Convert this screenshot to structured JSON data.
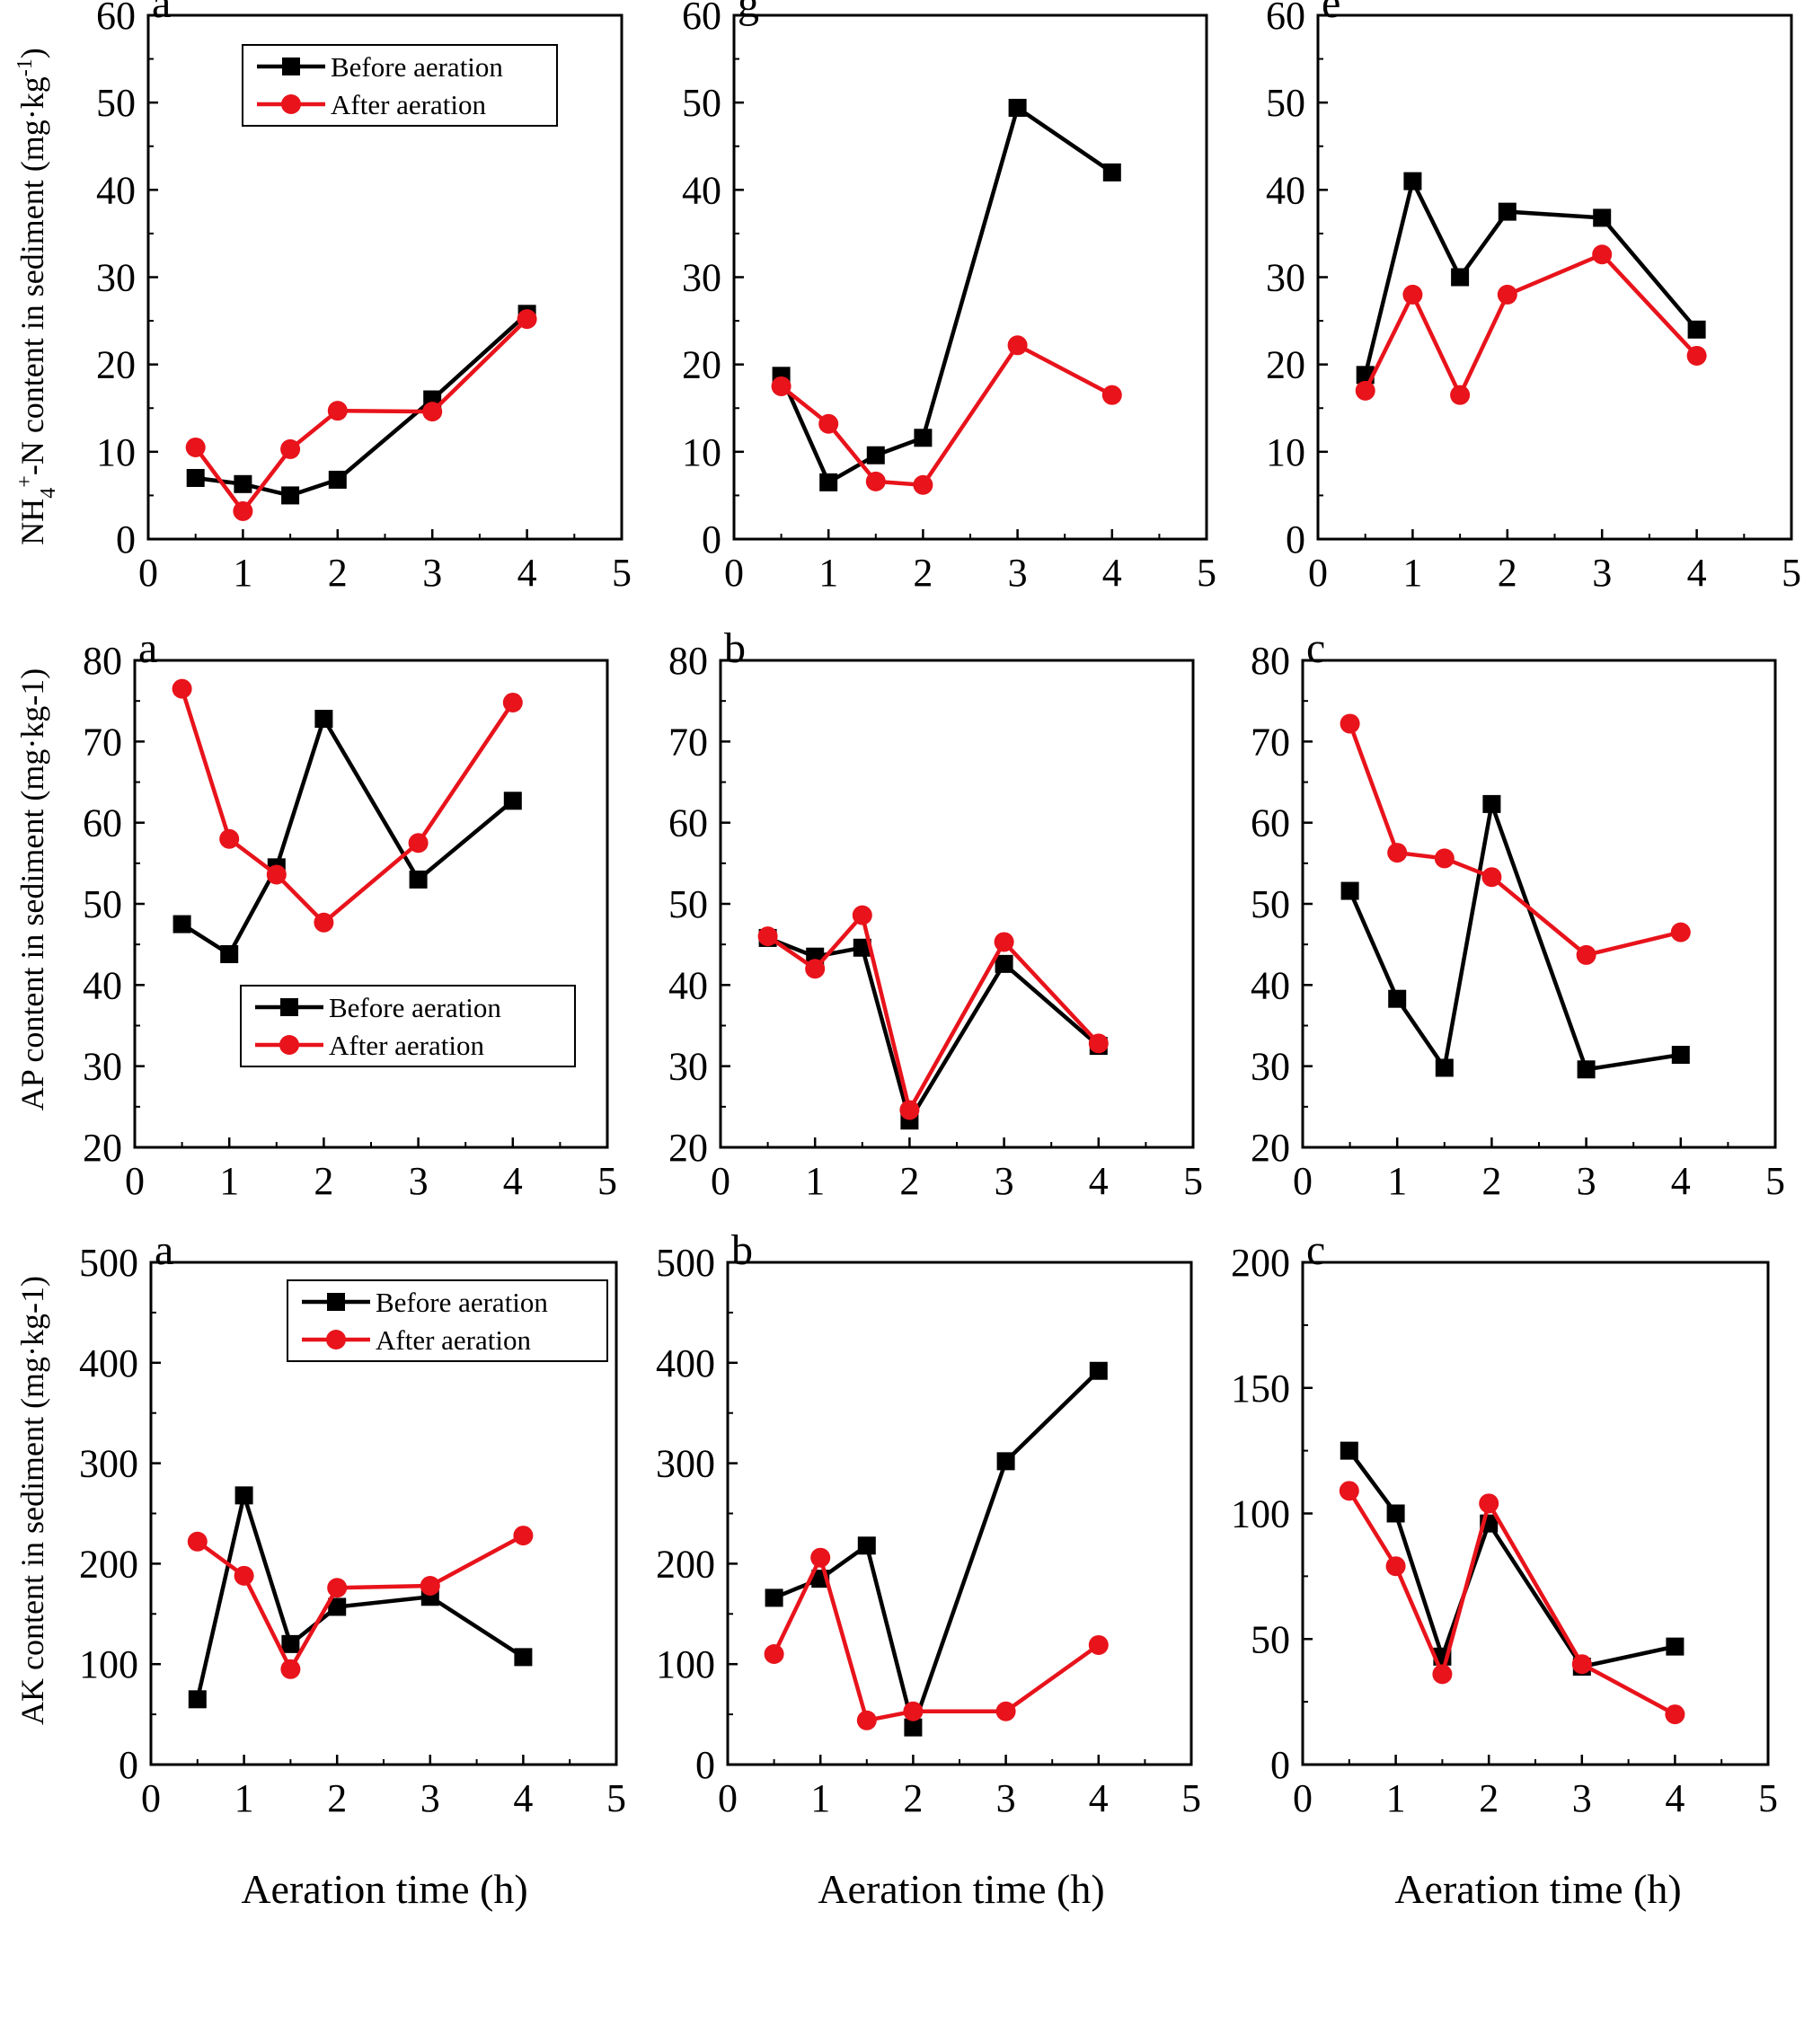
{
  "colors": {
    "before": "#000000",
    "after": "#e8131b",
    "axis": "#000000"
  },
  "rows": [
    {
      "ylabel": "NH4+-N content in sediment (mg·kg-1)",
      "ylabel_parts": {
        "base": "NH",
        "sub": "4",
        "sup": "+",
        "rest": "-N content in sediment (mg·kg",
        "unit_sup": "-1",
        "close": ")"
      }
    },
    {
      "ylabel": "AP content in sediment (mg·kg-1)"
    },
    {
      "ylabel": "AK content in sediment (mg·kg-1)"
    }
  ],
  "xlabel": "Aeration time (h)",
  "legend": {
    "before": "Before aeration",
    "after": "After aeration"
  },
  "chart_data": [
    {
      "type": "line",
      "panel": "a",
      "row": 0,
      "col": 0,
      "xlim": [
        0,
        5
      ],
      "ylim": [
        0,
        60
      ],
      "xticks": [
        0,
        1,
        2,
        3,
        4,
        5
      ],
      "yticks": [
        0,
        10,
        20,
        30,
        40,
        50,
        60
      ],
      "legend": "top-left",
      "title": "",
      "series": [
        {
          "name": "Before aeration",
          "x": [
            0.5,
            1,
            1.5,
            2,
            3,
            4
          ],
          "y": [
            7,
            6.3,
            5,
            6.8,
            16,
            25.8
          ]
        },
        {
          "name": "After aeration",
          "x": [
            0.5,
            1,
            1.5,
            2,
            3,
            4
          ],
          "y": [
            10.5,
            3.2,
            10.3,
            14.7,
            14.6,
            25.2
          ]
        }
      ]
    },
    {
      "type": "line",
      "panel": "g",
      "row": 0,
      "col": 1,
      "xlim": [
        0,
        5
      ],
      "ylim": [
        0,
        60
      ],
      "xticks": [
        0,
        1,
        2,
        3,
        4,
        5
      ],
      "yticks": [
        0,
        10,
        20,
        30,
        40,
        50,
        60
      ],
      "title": "",
      "series": [
        {
          "name": "Before aeration",
          "x": [
            0.5,
            1,
            1.5,
            2,
            3,
            4
          ],
          "y": [
            18.7,
            6.5,
            9.6,
            11.6,
            49.4,
            42
          ]
        },
        {
          "name": "After aeration",
          "x": [
            0.5,
            1,
            1.5,
            2,
            3,
            4
          ],
          "y": [
            17.5,
            13.2,
            6.6,
            6.2,
            22.2,
            16.5
          ]
        }
      ]
    },
    {
      "type": "line",
      "panel": "e",
      "row": 0,
      "col": 2,
      "xlim": [
        0,
        5
      ],
      "ylim": [
        0,
        60
      ],
      "xticks": [
        0,
        1,
        2,
        3,
        4,
        5
      ],
      "yticks": [
        0,
        10,
        20,
        30,
        40,
        50,
        60
      ],
      "title": "",
      "series": [
        {
          "name": "Before aeration",
          "x": [
            0.5,
            1,
            1.5,
            2,
            3,
            4
          ],
          "y": [
            18.8,
            41,
            30,
            37.5,
            36.8,
            24
          ]
        },
        {
          "name": "After aeration",
          "x": [
            0.5,
            1,
            1.5,
            2,
            3,
            4
          ],
          "y": [
            17,
            28,
            16.5,
            28,
            32.6,
            21
          ]
        }
      ]
    },
    {
      "type": "line",
      "panel": "a",
      "row": 1,
      "col": 0,
      "xlim": [
        0,
        5
      ],
      "ylim": [
        20,
        80
      ],
      "xticks": [
        0,
        1,
        2,
        3,
        4,
        5
      ],
      "yticks": [
        20,
        30,
        40,
        50,
        60,
        70,
        80
      ],
      "legend": "lower-middle",
      "title": "",
      "series": [
        {
          "name": "Before aeration",
          "x": [
            0.5,
            1,
            1.5,
            2,
            3,
            4
          ],
          "y": [
            47.5,
            43.8,
            54.5,
            72.8,
            53,
            62.7
          ]
        },
        {
          "name": "After aeration",
          "x": [
            0.5,
            1,
            1.5,
            2,
            3,
            4
          ],
          "y": [
            76.5,
            58,
            53.6,
            47.7,
            57.5,
            74.8
          ]
        }
      ]
    },
    {
      "type": "line",
      "panel": "b",
      "row": 1,
      "col": 1,
      "xlim": [
        0,
        5
      ],
      "ylim": [
        20,
        80
      ],
      "xticks": [
        0,
        1,
        2,
        3,
        4,
        5
      ],
      "yticks": [
        20,
        30,
        40,
        50,
        60,
        70,
        80
      ],
      "title": "",
      "series": [
        {
          "name": "Before aeration",
          "x": [
            0.5,
            1,
            1.5,
            2,
            3,
            4
          ],
          "y": [
            45.8,
            43.5,
            44.6,
            23.3,
            42.6,
            32.5
          ]
        },
        {
          "name": "After aeration",
          "x": [
            0.5,
            1,
            1.5,
            2,
            3,
            4
          ],
          "y": [
            46,
            42,
            48.6,
            24.6,
            45.3,
            32.8
          ]
        }
      ]
    },
    {
      "type": "line",
      "panel": "c",
      "row": 1,
      "col": 2,
      "xlim": [
        0,
        5
      ],
      "ylim": [
        20,
        80
      ],
      "xticks": [
        0,
        1,
        2,
        3,
        4,
        5
      ],
      "yticks": [
        20,
        30,
        40,
        50,
        60,
        70,
        80
      ],
      "title": "",
      "series": [
        {
          "name": "Before aeration",
          "x": [
            0.5,
            1,
            1.5,
            2,
            3,
            4
          ],
          "y": [
            51.6,
            38.3,
            29.8,
            62.3,
            29.6,
            31.4
          ]
        },
        {
          "name": "After aeration",
          "x": [
            0.5,
            1,
            1.5,
            2,
            3,
            4
          ],
          "y": [
            72.2,
            56.3,
            55.6,
            53.3,
            43.7,
            46.5
          ]
        }
      ]
    },
    {
      "type": "line",
      "panel": "a",
      "row": 2,
      "col": 0,
      "xlim": [
        0,
        5
      ],
      "ylim": [
        0,
        500
      ],
      "xticks": [
        0,
        1,
        2,
        3,
        4,
        5
      ],
      "yticks": [
        0,
        100,
        200,
        300,
        400,
        500
      ],
      "legend": "top-right",
      "title": "",
      "series": [
        {
          "name": "Before aeration",
          "x": [
            0.5,
            1,
            1.5,
            2,
            3,
            4
          ],
          "y": [
            65,
            268,
            120,
            157,
            167,
            107
          ]
        },
        {
          "name": "After aeration",
          "x": [
            0.5,
            1,
            1.5,
            2,
            3,
            4
          ],
          "y": [
            222,
            188,
            95,
            176,
            178,
            228
          ]
        }
      ]
    },
    {
      "type": "line",
      "panel": "b",
      "row": 2,
      "col": 1,
      "xlim": [
        0,
        5
      ],
      "ylim": [
        0,
        500
      ],
      "xticks": [
        0,
        1,
        2,
        3,
        4,
        5
      ],
      "yticks": [
        0,
        100,
        200,
        300,
        400,
        500
      ],
      "title": "",
      "series": [
        {
          "name": "Before aeration",
          "x": [
            0.5,
            1,
            1.5,
            2,
            3,
            4
          ],
          "y": [
            166,
            185,
            218,
            37,
            302,
            392
          ]
        },
        {
          "name": "After aeration",
          "x": [
            0.5,
            1,
            1.5,
            2,
            3,
            4
          ],
          "y": [
            110,
            206,
            44,
            53,
            53,
            119
          ]
        }
      ]
    },
    {
      "type": "line",
      "panel": "c",
      "row": 2,
      "col": 2,
      "xlim": [
        0,
        5
      ],
      "ylim": [
        0,
        200
      ],
      "xticks": [
        0,
        1,
        2,
        3,
        4,
        5
      ],
      "yticks": [
        0,
        50,
        100,
        150,
        200
      ],
      "title": "",
      "series": [
        {
          "name": "Before aeration",
          "x": [
            0.5,
            1,
            1.5,
            2,
            3,
            4
          ],
          "y": [
            125,
            100,
            43,
            96,
            39,
            47
          ]
        },
        {
          "name": "After aeration",
          "x": [
            0.5,
            1,
            1.5,
            2,
            3,
            4
          ],
          "y": [
            109,
            79,
            36,
            104,
            40,
            20
          ]
        }
      ]
    }
  ]
}
